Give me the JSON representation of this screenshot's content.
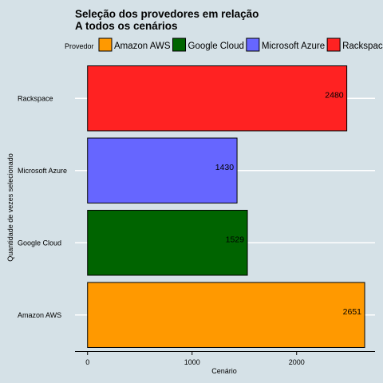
{
  "chart_data": {
    "type": "bar",
    "orientation": "horizontal",
    "title_lines": [
      "Seleção dos provedores em relação",
      "A todos os cenários"
    ],
    "xlabel": "Cenário",
    "ylabel": "Quantidade de vezes selecionado",
    "xlim": [
      -120,
      2750
    ],
    "xticks": [
      0,
      1000,
      2000
    ],
    "grid": "horizontal-white",
    "legend_placement": "top",
    "legend_title": "Provedor",
    "categories": [
      "Amazon AWS",
      "Google Cloud",
      "Microsoft Azure",
      "Rackspace"
    ],
    "values": [
      2651,
      1529,
      1430,
      2480
    ],
    "colors": [
      "#ff9900",
      "#006400",
      "#6666ff",
      "#ff2222"
    ]
  }
}
